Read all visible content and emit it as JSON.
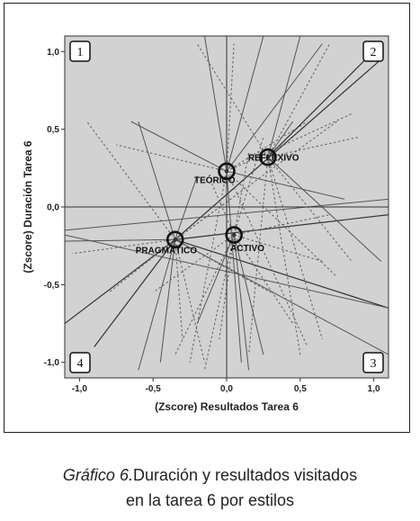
{
  "caption": {
    "label": "Gráfico 6.",
    "line1_rest": "Duración y resultados visitados",
    "line2": "en la tarea 6 por estilos"
  },
  "chart_data": {
    "type": "scatter",
    "xlabel": "(Zscore) Resultados Tarea 6",
    "ylabel": "(Zscore) Duración Tarea 6",
    "xlim": [
      -1.1,
      1.1
    ],
    "ylim": [
      -1.1,
      1.1
    ],
    "x_ticks": [
      -1.0,
      -0.5,
      0.0,
      0.5,
      1.0
    ],
    "x_tick_labels": [
      "-1,0",
      "-0,5",
      "0,0",
      "0,5",
      "1,0"
    ],
    "y_ticks": [
      -1.0,
      -0.5,
      0.0,
      0.5,
      1.0
    ],
    "y_tick_labels": [
      "-1,0",
      "-0,5",
      "0,0",
      "0,5",
      "1,0"
    ],
    "grid": false,
    "reference_lines": {
      "x": 0.0,
      "y": 0.0
    },
    "quadrants": [
      {
        "label": "1",
        "position": "top-left"
      },
      {
        "label": "2",
        "position": "top-right"
      },
      {
        "label": "3",
        "position": "bottom-right"
      },
      {
        "label": "4",
        "position": "bottom-left"
      }
    ],
    "centroids": [
      {
        "label": "TEÓRICO",
        "x": 0.0,
        "y": 0.23
      },
      {
        "label": "REFLEXIVO",
        "x": 0.28,
        "y": 0.32
      },
      {
        "label": "PRAGMÁTICO",
        "x": -0.35,
        "y": -0.21
      },
      {
        "label": "ACTIVO",
        "x": 0.05,
        "y": -0.18
      }
    ],
    "colors": {
      "plot_bg": "#d2d2d2",
      "solid_line": "#555555",
      "dotted_line": "#6a6a6a",
      "dark_line": "#333333"
    },
    "spokes": [
      {
        "from": 2,
        "to": [
          -0.6,
          -1.05
        ],
        "style": "solid"
      },
      {
        "from": 2,
        "to": [
          -0.3,
          -0.85
        ],
        "style": "dotted"
      },
      {
        "from": 2,
        "to": [
          -1.1,
          -0.75
        ],
        "style": "dark"
      },
      {
        "from": 2,
        "to": [
          -1.05,
          -0.3
        ],
        "style": "dotted"
      },
      {
        "from": 2,
        "to": [
          -1.1,
          -0.22
        ],
        "style": "solid"
      },
      {
        "from": 2,
        "to": [
          -0.8,
          -0.55
        ],
        "style": "dotted"
      },
      {
        "from": 2,
        "to": [
          -0.9,
          -0.9
        ],
        "style": "dark"
      },
      {
        "from": 2,
        "to": [
          -0.6,
          0.55
        ],
        "style": "solid"
      },
      {
        "from": 2,
        "to": [
          -0.95,
          0.55
        ],
        "style": "dotted"
      },
      {
        "from": 2,
        "to": [
          -0.2,
          0.2
        ],
        "style": "solid"
      },
      {
        "from": 2,
        "to": [
          -0.15,
          -1.0
        ],
        "style": "dotted"
      },
      {
        "from": 2,
        "to": [
          -0.45,
          -1.0
        ],
        "style": "solid"
      },
      {
        "from": 2,
        "to": [
          1.05,
          0.95
        ],
        "style": "dark"
      },
      {
        "from": 2,
        "to": [
          1.1,
          -0.05
        ],
        "style": "dark"
      },
      {
        "from": 2,
        "to": [
          1.1,
          -0.65
        ],
        "style": "dark"
      },
      {
        "from": 2,
        "to": [
          0.3,
          -0.55
        ],
        "style": "dotted"
      },
      {
        "from": 2,
        "to": [
          0.75,
          0.55
        ],
        "style": "dotted"
      },
      {
        "from": 2,
        "to": [
          0.1,
          0.1
        ],
        "style": "dotted"
      },
      {
        "from": 0,
        "to": [
          -0.15,
          1.1
        ],
        "style": "solid"
      },
      {
        "from": 0,
        "to": [
          0.05,
          1.05
        ],
        "style": "dotted"
      },
      {
        "from": 0,
        "to": [
          0.25,
          1.1
        ],
        "style": "solid"
      },
      {
        "from": 0,
        "to": [
          0.65,
          1.05
        ],
        "style": "solid"
      },
      {
        "from": 0,
        "to": [
          -0.75,
          0.4
        ],
        "style": "dotted"
      },
      {
        "from": 0,
        "to": [
          -0.65,
          0.55
        ],
        "style": "solid"
      },
      {
        "from": 0,
        "to": [
          0.55,
          0.55
        ],
        "style": "dotted"
      },
      {
        "from": 0,
        "to": [
          0.75,
          -0.45
        ],
        "style": "dotted"
      },
      {
        "from": 0,
        "to": [
          0.85,
          0.6
        ],
        "style": "dotted"
      },
      {
        "from": 0,
        "to": [
          0.55,
          -0.9
        ],
        "style": "dotted"
      },
      {
        "from": 0,
        "to": [
          0.1,
          -1.0
        ],
        "style": "solid"
      },
      {
        "from": 0,
        "to": [
          -0.25,
          -1.0
        ],
        "style": "dotted"
      },
      {
        "from": 0,
        "to": [
          0.8,
          0.05
        ],
        "style": "solid"
      },
      {
        "from": 1,
        "to": [
          -0.2,
          1.05
        ],
        "style": "dotted"
      },
      {
        "from": 1,
        "to": [
          0.5,
          1.1
        ],
        "style": "solid"
      },
      {
        "from": 1,
        "to": [
          0.7,
          1.05
        ],
        "style": "dotted"
      },
      {
        "from": 1,
        "to": [
          1.05,
          1.05
        ],
        "style": "dark"
      },
      {
        "from": 1,
        "to": [
          0.85,
          -0.35
        ],
        "style": "dotted"
      },
      {
        "from": 1,
        "to": [
          1.05,
          -0.35
        ],
        "style": "solid"
      },
      {
        "from": 1,
        "to": [
          0.5,
          -0.95
        ],
        "style": "dotted"
      },
      {
        "from": 1,
        "to": [
          0.65,
          -0.85
        ],
        "style": "dotted"
      },
      {
        "from": 1,
        "to": [
          0.15,
          -0.95
        ],
        "style": "dotted"
      },
      {
        "from": 1,
        "to": [
          0.45,
          0.55
        ],
        "style": "solid"
      },
      {
        "from": 1,
        "to": [
          0.9,
          0.45
        ],
        "style": "dotted"
      },
      {
        "from": 3,
        "to": [
          0.25,
          -0.95
        ],
        "style": "solid"
      },
      {
        "from": 3,
        "to": [
          0.15,
          -1.05
        ],
        "style": "solid"
      },
      {
        "from": 3,
        "to": [
          -0.15,
          -1.05
        ],
        "style": "dotted"
      },
      {
        "from": 3,
        "to": [
          -0.05,
          -0.85
        ],
        "style": "dotted"
      },
      {
        "from": 3,
        "to": [
          0.45,
          -0.75
        ],
        "style": "dotted"
      },
      {
        "from": 3,
        "to": [
          0.15,
          0.35
        ],
        "style": "dotted"
      },
      {
        "from": 3,
        "to": [
          0.25,
          0.45
        ],
        "style": "dotted"
      },
      {
        "from": 3,
        "to": [
          -0.5,
          -0.55
        ],
        "style": "dotted"
      },
      {
        "from": 3,
        "to": [
          -0.2,
          -0.75
        ],
        "style": "solid"
      },
      {
        "from": 3,
        "to": [
          -0.35,
          -0.95
        ],
        "style": "dotted"
      },
      {
        "from": 3,
        "to": [
          0.65,
          -0.35
        ],
        "style": "dotted"
      },
      {
        "from": 3,
        "to": [
          0.7,
          -0.05
        ],
        "style": "dotted"
      },
      {
        "from": 3,
        "to": [
          -0.1,
          0.15
        ],
        "style": "dotted"
      }
    ],
    "lines": [
      {
        "from": [
          -1.1,
          -0.15
        ],
        "to": [
          1.1,
          0.05
        ],
        "style": "solid"
      },
      {
        "from": [
          -1.1,
          -0.18
        ],
        "to": [
          1.1,
          -0.65
        ],
        "style": "solid"
      },
      {
        "from": [
          -0.35,
          -0.21
        ],
        "to": [
          1.1,
          -0.95
        ],
        "style": "solid"
      }
    ]
  }
}
